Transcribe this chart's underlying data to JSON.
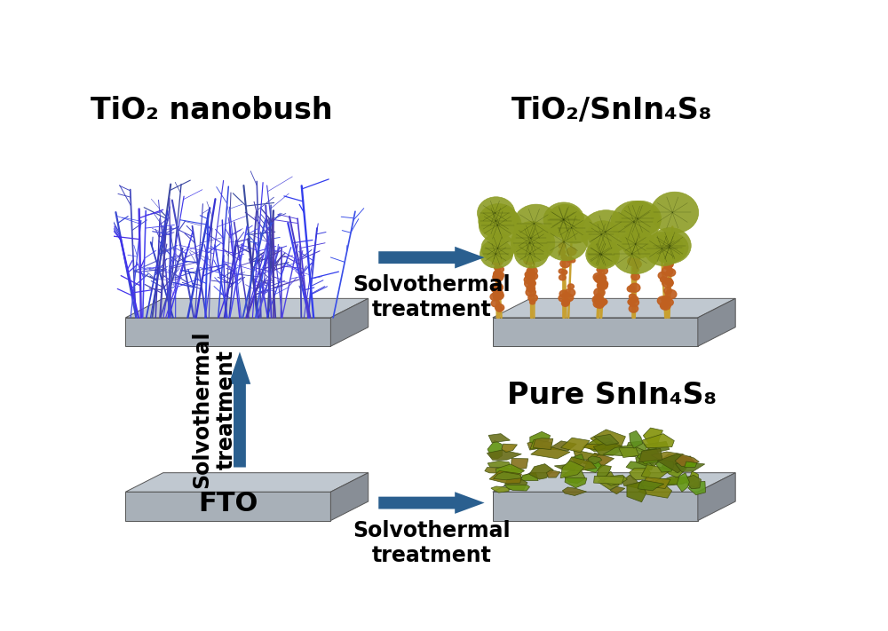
{
  "title_tl": "TiO₂ nanobush",
  "title_tr": "TiO₂/SnIn₄S₈",
  "title_br": "Pure SnIn₄S₈",
  "label_bl": "FTO",
  "arrow_h_top_label": "Solvothermal\ntreatment",
  "arrow_h_bot_label": "Solvothermal\ntreatment",
  "arrow_v_label": "Solvothermal\ntreatment",
  "bg_color": "#ffffff",
  "arrow_color": "#2a5f8f",
  "slab_face": "#a8b0b8",
  "slab_top": "#c0c8d0",
  "slab_side": "#888e96",
  "nanobush_colors": [
    "#4455cc",
    "#5566dd",
    "#3344bb",
    "#6677ee",
    "#2233aa"
  ],
  "tio2_sn_top_color": "#8a9a20",
  "tio2_sn_stem_color": "#c8a030",
  "tio2_sn_ball_color": "#c06020",
  "sn_leaf_color": "#7a8a18",
  "label_fontsize": 24,
  "fto_fontsize": 22,
  "arrow_label_fontsize": 17
}
